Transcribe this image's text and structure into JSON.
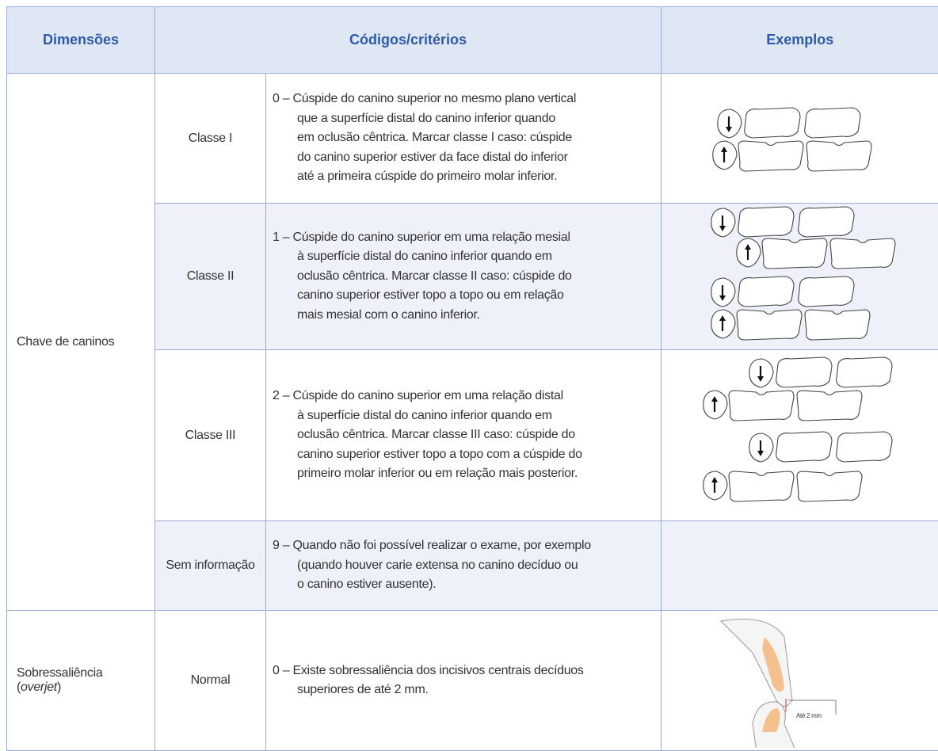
{
  "table": {
    "header": [
      "Dimensões",
      "Códigos/critérios",
      "Exemplos"
    ],
    "sections": [
      {
        "dimension_parts": [
          "Chave de caninos"
        ],
        "rows": [
          {
            "code": "Classe I",
            "criterion_lines": [
              "0 – Cúspide do canino superior no mesmo plano vertical",
              "que a superfície distal do canino inferior quando",
              "em oclusão cêntrica. Marcar classe I caso: cúspide",
              "do canino superior estiver da face distal do inferior",
              "até a primeira cúspide do primeiro molar inferior."
            ]
          },
          {
            "code": "Classe II",
            "criterion_lines": [
              "1 – Cúspide do canino superior em uma relação mesial",
              "à superfície distal do canino inferior quando em",
              "oclusão cêntrica. Marcar classe II caso: cúspide do",
              "canino superior estiver topo a topo ou em relação",
              "mais mesial com o canino inferior."
            ]
          },
          {
            "code": "Classe III",
            "criterion_lines": [
              "2 – Cúspide do canino superior em uma relação distal",
              "à superfície distal do canino inferior quando em",
              "oclusão cêntrica. Marcar classe III caso: cúspide do",
              "canino superior estiver topo a topo com a cúspide do",
              "primeiro molar inferior ou em relação mais posterior."
            ]
          },
          {
            "code": "Sem informação",
            "criterion_lines": [
              "9 – Quando não foi possível realizar o exame, por exemplo",
              "(quando houver carie extensa no canino decíduo ou",
              "o canino estiver ausente)."
            ]
          }
        ]
      },
      {
        "dimension_parts": [
          "Sobressaliência",
          "(",
          "overjet",
          ")"
        ],
        "rows": [
          {
            "code": "Normal",
            "criterion_lines": [
              "0 – Existe sobressaliência dos incisivos centrais decíduos",
              "superiores de até 2 mm."
            ],
            "example_label": "Até 2 mm"
          }
        ]
      }
    ]
  }
}
